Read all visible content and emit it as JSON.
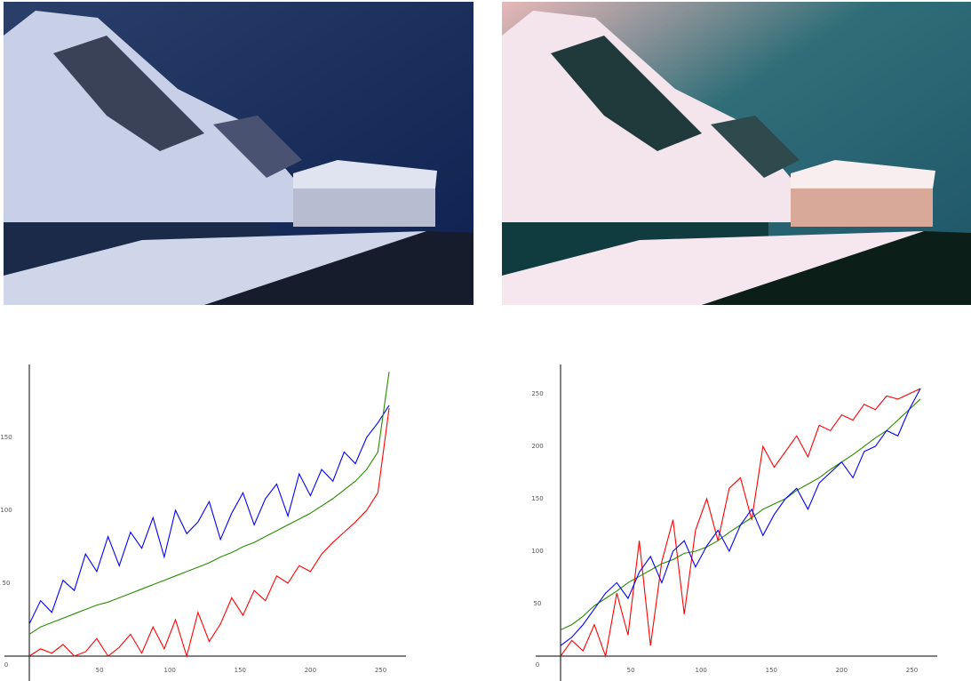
{
  "chart_data": [
    {
      "type": "line",
      "x": [
        0,
        8,
        16,
        24,
        32,
        40,
        48,
        56,
        64,
        72,
        80,
        88,
        96,
        104,
        112,
        120,
        128,
        136,
        144,
        152,
        160,
        168,
        176,
        184,
        192,
        200,
        208,
        216,
        224,
        232,
        240,
        248,
        256
      ],
      "series": [
        {
          "color": "#0000ff",
          "values": [
            22,
            38,
            30,
            52,
            45,
            70,
            58,
            82,
            62,
            85,
            74,
            95,
            68,
            100,
            84,
            92,
            106,
            80,
            98,
            112,
            90,
            108,
            118,
            96,
            125,
            110,
            128,
            120,
            140,
            132,
            150,
            160,
            172
          ]
        },
        {
          "color": "#2a8a00",
          "values": [
            15,
            20,
            23,
            26,
            29,
            32,
            35,
            37,
            40,
            43,
            46,
            49,
            52,
            55,
            58,
            61,
            64,
            68,
            71,
            75,
            78,
            82,
            86,
            90,
            94,
            98,
            103,
            108,
            114,
            120,
            128,
            140,
            195
          ]
        },
        {
          "color": "#ff0000",
          "values": [
            0,
            5,
            2,
            8,
            0,
            3,
            12,
            0,
            6,
            15,
            2,
            20,
            5,
            25,
            0,
            30,
            10,
            22,
            40,
            28,
            45,
            38,
            55,
            50,
            62,
            58,
            70,
            78,
            85,
            92,
            100,
            112,
            170
          ]
        }
      ],
      "xlim": [
        0,
        268
      ],
      "ylim": [
        0,
        200
      ],
      "xticks": [
        50,
        100,
        150,
        200,
        250
      ],
      "yticks": [
        0,
        50,
        100,
        150
      ],
      "grid": false
    },
    {
      "type": "line",
      "x": [
        0,
        8,
        16,
        24,
        32,
        40,
        48,
        56,
        64,
        72,
        80,
        88,
        96,
        104,
        112,
        120,
        128,
        136,
        144,
        152,
        160,
        168,
        176,
        184,
        192,
        200,
        208,
        216,
        224,
        232,
        240,
        248,
        256
      ],
      "series": [
        {
          "color": "#ff0000",
          "values": [
            0,
            15,
            5,
            30,
            0,
            60,
            20,
            110,
            10,
            90,
            130,
            40,
            120,
            150,
            110,
            160,
            170,
            130,
            200,
            180,
            195,
            210,
            190,
            220,
            215,
            230,
            225,
            240,
            235,
            248,
            245,
            250,
            255
          ]
        },
        {
          "color": "#2a8a00",
          "values": [
            25,
            30,
            38,
            48,
            55,
            62,
            70,
            76,
            82,
            88,
            92,
            98,
            100,
            104,
            110,
            118,
            125,
            132,
            140,
            145,
            150,
            158,
            164,
            170,
            178,
            185,
            192,
            200,
            208,
            215,
            225,
            235,
            245
          ]
        },
        {
          "color": "#0000ff",
          "values": [
            10,
            18,
            30,
            45,
            60,
            70,
            55,
            80,
            95,
            70,
            100,
            110,
            85,
            105,
            120,
            100,
            125,
            140,
            115,
            135,
            150,
            160,
            140,
            165,
            175,
            185,
            170,
            195,
            200,
            215,
            210,
            235,
            255
          ]
        }
      ],
      "xlim": [
        0,
        268
      ],
      "ylim": [
        0,
        278
      ],
      "xticks": [
        50,
        100,
        150,
        200,
        250
      ],
      "yticks": [
        0,
        50,
        100,
        150,
        200,
        250
      ],
      "grid": false
    }
  ]
}
